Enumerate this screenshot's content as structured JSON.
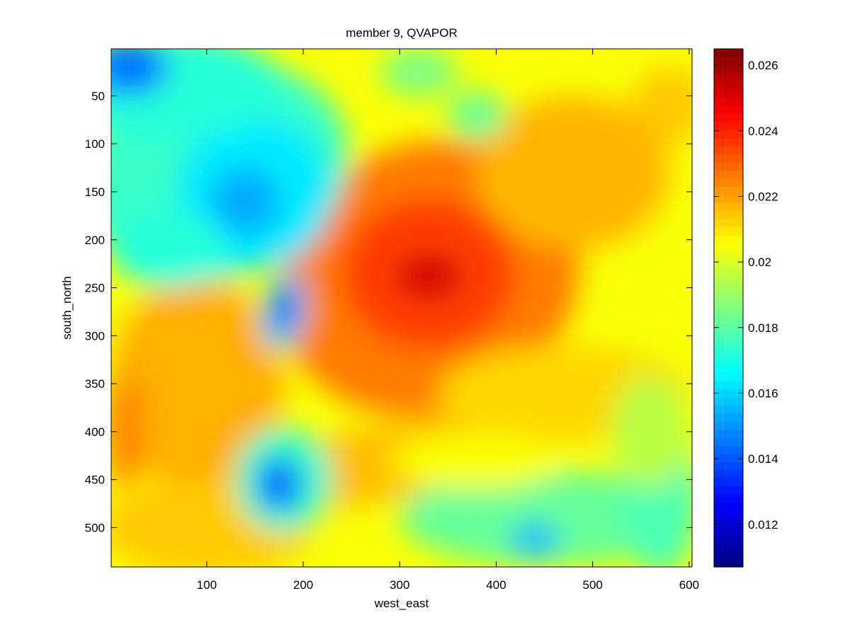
{
  "chart_data": {
    "type": "heatmap",
    "title": "member 9, QVAPOR",
    "xlabel": "west_east",
    "ylabel": "south_north",
    "xlim": [
      1,
      603
    ],
    "ylim": [
      541,
      1
    ],
    "x_ticks": [
      100,
      200,
      300,
      400,
      500,
      600
    ],
    "y_ticks": [
      50,
      100,
      150,
      200,
      250,
      300,
      350,
      400,
      450,
      500
    ],
    "colormap": "jet",
    "colorbar": {
      "min": 0.0107,
      "max": 0.0265,
      "ticks": [
        0.012,
        0.014,
        0.016,
        0.018,
        0.02,
        0.022,
        0.024,
        0.026
      ],
      "tick_labels": [
        "0.012",
        "0.014",
        "0.016",
        "0.018",
        "0.02",
        "0.022",
        "0.024",
        "0.026"
      ]
    },
    "background_value": 0.0205,
    "features": [
      {
        "x": 330,
        "y": 240,
        "rx": 160,
        "ry": 140,
        "value": 0.0226,
        "rotation": -25
      },
      {
        "x": 330,
        "y": 235,
        "rx": 90,
        "ry": 80,
        "value": 0.0236,
        "rotation": 0
      },
      {
        "x": 330,
        "y": 238,
        "rx": 35,
        "ry": 25,
        "value": 0.0252,
        "rotation": 0
      },
      {
        "x": 580,
        "y": 60,
        "rx": 40,
        "ry": 40,
        "value": 0.0214,
        "rotation": 0
      },
      {
        "x": 90,
        "y": 350,
        "rx": 90,
        "ry": 110,
        "value": 0.0218,
        "rotation": 0
      },
      {
        "x": 15,
        "y": 400,
        "rx": 20,
        "ry": 60,
        "value": 0.0225,
        "rotation": 0
      },
      {
        "x": 300,
        "y": 430,
        "rx": 160,
        "ry": 40,
        "value": 0.0216,
        "rotation": -10
      },
      {
        "x": 470,
        "y": 360,
        "rx": 130,
        "ry": 50,
        "value": 0.0212,
        "rotation": 0
      },
      {
        "x": 100,
        "y": 500,
        "rx": 110,
        "ry": 50,
        "value": 0.0214,
        "rotation": 0
      },
      {
        "x": 480,
        "y": 130,
        "rx": 100,
        "ry": 80,
        "value": 0.0217,
        "rotation": 0
      },
      {
        "x": 110,
        "y": 130,
        "rx": 140,
        "ry": 110,
        "value": 0.0175,
        "rotation": -20
      },
      {
        "x": 150,
        "y": 150,
        "rx": 80,
        "ry": 80,
        "value": 0.0163,
        "rotation": 0
      },
      {
        "x": 140,
        "y": 160,
        "rx": 35,
        "ry": 35,
        "value": 0.0153,
        "rotation": 0
      },
      {
        "x": 60,
        "y": 40,
        "rx": 120,
        "ry": 55,
        "value": 0.0172,
        "rotation": 0
      },
      {
        "x": 20,
        "y": 20,
        "rx": 40,
        "ry": 30,
        "value": 0.0145,
        "rotation": 0
      },
      {
        "x": 60,
        "y": 210,
        "rx": 60,
        "ry": 40,
        "value": 0.0172,
        "rotation": 0
      },
      {
        "x": 320,
        "y": 25,
        "rx": 40,
        "ry": 25,
        "value": 0.0185,
        "rotation": 0
      },
      {
        "x": 380,
        "y": 70,
        "rx": 30,
        "ry": 25,
        "value": 0.0182,
        "rotation": 0
      },
      {
        "x": 180,
        "y": 275,
        "rx": 22,
        "ry": 40,
        "value": 0.0162,
        "rotation": 10
      },
      {
        "x": 180,
        "y": 272,
        "rx": 12,
        "ry": 28,
        "value": 0.0125,
        "rotation": 10
      },
      {
        "x": 180,
        "y": 450,
        "rx": 50,
        "ry": 55,
        "value": 0.0175,
        "rotation": 0
      },
      {
        "x": 175,
        "y": 455,
        "rx": 25,
        "ry": 30,
        "value": 0.0148,
        "rotation": 0
      },
      {
        "x": 173,
        "y": 455,
        "rx": 10,
        "ry": 15,
        "value": 0.0128,
        "rotation": 0
      },
      {
        "x": 450,
        "y": 490,
        "rx": 150,
        "ry": 50,
        "value": 0.0182,
        "rotation": 0
      },
      {
        "x": 570,
        "y": 470,
        "rx": 40,
        "ry": 80,
        "value": 0.0178,
        "rotation": 0
      },
      {
        "x": 440,
        "y": 513,
        "rx": 25,
        "ry": 18,
        "value": 0.0155,
        "rotation": 0
      },
      {
        "x": 380,
        "y": 430,
        "rx": 90,
        "ry": 30,
        "value": 0.0205,
        "rotation": 0
      },
      {
        "x": 560,
        "y": 400,
        "rx": 40,
        "ry": 60,
        "value": 0.0195,
        "rotation": 0
      }
    ]
  }
}
